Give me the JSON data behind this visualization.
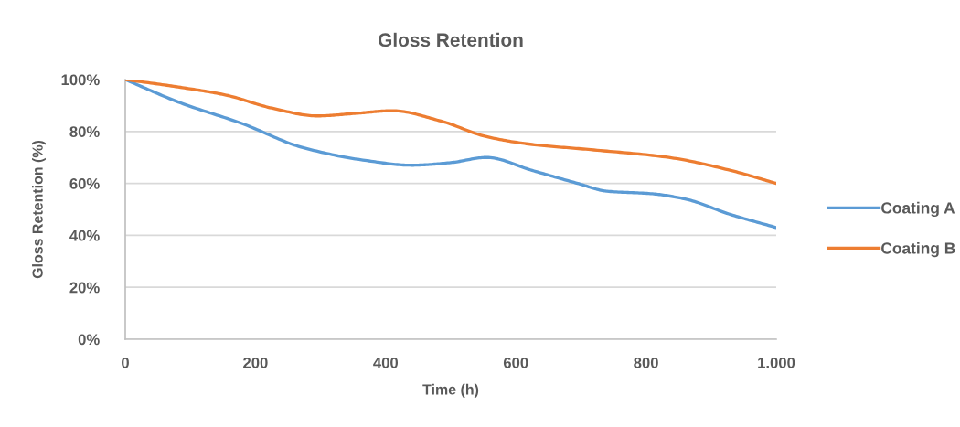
{
  "chart_data": {
    "type": "line",
    "title": "Gloss Retention",
    "xlabel": "Time (h)",
    "ylabel": "Gloss Retention (%)",
    "series": [
      {
        "name": "Coating A",
        "color": "#5b9bd5",
        "x": [
          0,
          85,
          180,
          270,
          365,
          440,
          500,
          555,
          625,
          695,
          740,
          810,
          860,
          930,
          1000
        ],
        "values": [
          100,
          91,
          83,
          74,
          69,
          67,
          68,
          70,
          65,
          60,
          57,
          56,
          54,
          48,
          43
        ]
      },
      {
        "name": "Coating B",
        "color": "#ed7d31",
        "x": [
          0,
          85,
          155,
          225,
          295,
          355,
          410,
          485,
          555,
          625,
          715,
          835,
          930,
          1000
        ],
        "values": [
          100,
          97,
          94,
          89,
          86,
          87,
          88,
          84,
          78,
          75,
          73,
          70,
          65,
          60
        ]
      }
    ],
    "xlim": [
      0,
      1000
    ],
    "ylim": [
      0,
      100
    ],
    "xticks": [
      0,
      200,
      400,
      600,
      800,
      {
        "value": 1000,
        "label": "1.000"
      }
    ],
    "yticks": [
      {
        "value": 0,
        "label": "0%"
      },
      {
        "value": 20,
        "label": "20%"
      },
      {
        "value": 40,
        "label": "40%"
      },
      {
        "value": 60,
        "label": "60%"
      },
      {
        "value": 80,
        "label": "80%"
      },
      {
        "value": 100,
        "label": "100%"
      }
    ],
    "grid": "y",
    "legend": "right"
  }
}
